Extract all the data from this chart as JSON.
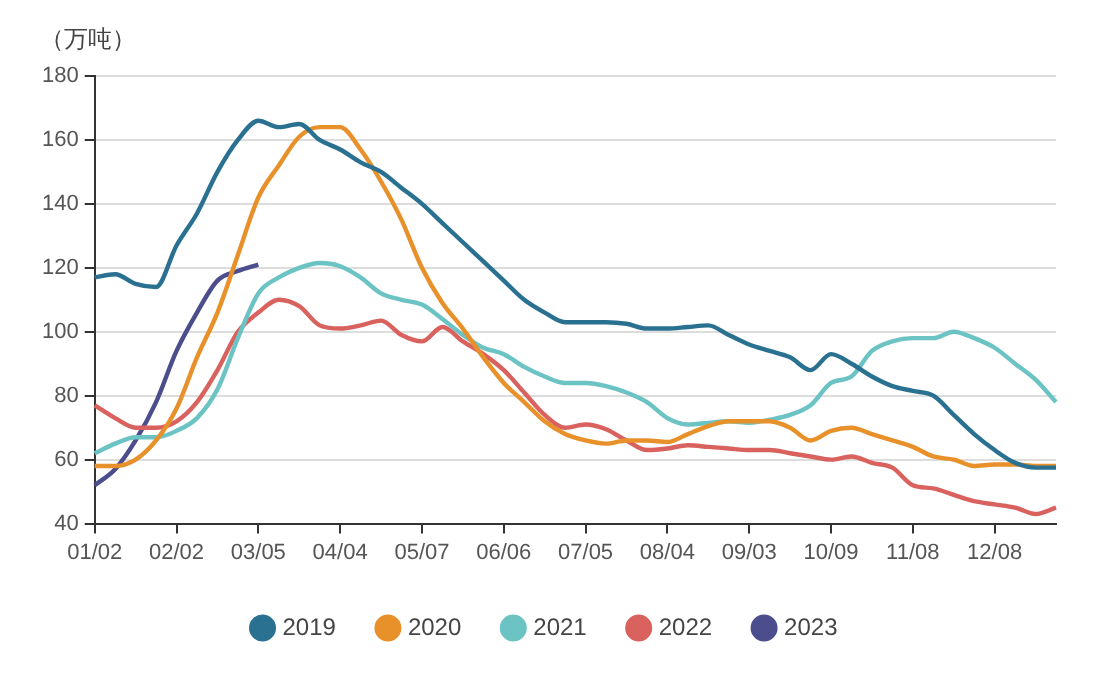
{
  "chart_data": {
    "type": "line",
    "ylabel": "（万吨）",
    "categories": [
      "01/02",
      null,
      null,
      null,
      "02/02",
      null,
      null,
      null,
      "03/05",
      null,
      null,
      null,
      "04/04",
      null,
      null,
      null,
      "05/07",
      null,
      null,
      null,
      "06/06",
      null,
      null,
      null,
      "07/05",
      null,
      null,
      null,
      "08/04",
      null,
      null,
      null,
      "09/03",
      null,
      null,
      null,
      "10/09",
      null,
      null,
      null,
      "11/08",
      null,
      null,
      null,
      "12/08",
      null,
      null,
      null
    ],
    "series": [
      {
        "name": "2019",
        "color": "#2a7191",
        "values": [
          117,
          118,
          115,
          114,
          127,
          137,
          150,
          160,
          166,
          164,
          165,
          160,
          157,
          153,
          150,
          145,
          140,
          134,
          128,
          122,
          116,
          110,
          106,
          103,
          103,
          103,
          102.5,
          101,
          101,
          101.5,
          102,
          99,
          96,
          94,
          92,
          88,
          93,
          90,
          86,
          83,
          81.5,
          80,
          74,
          68,
          63,
          59,
          57.5,
          57.5
        ]
      },
      {
        "name": "2020",
        "color": "#e8912a",
        "values": [
          58,
          58,
          60,
          66,
          76,
          92,
          106,
          124,
          142,
          152,
          161,
          164,
          164,
          157,
          147,
          135,
          120,
          109,
          101,
          92,
          84,
          78,
          72,
          68,
          66,
          65,
          66,
          66,
          65.5,
          68,
          70.5,
          72,
          72,
          72,
          70,
          66,
          69,
          70,
          68,
          66,
          64,
          61,
          60,
          58,
          58.5,
          58.5,
          58,
          58
        ]
      },
      {
        "name": "2021",
        "color": "#6cc3c4",
        "values": [
          62,
          65,
          67,
          67,
          69,
          73,
          82,
          98,
          112,
          117,
          120,
          121.5,
          120.5,
          117,
          112,
          110,
          108.5,
          104,
          99,
          95,
          93,
          89,
          86,
          84,
          84,
          83,
          81,
          78,
          73,
          71,
          71.5,
          72,
          71.5,
          72.5,
          74,
          77,
          84,
          86,
          94,
          97,
          98,
          98,
          100,
          98,
          95,
          90,
          85,
          78
        ]
      },
      {
        "name": "2022",
        "color": "#d9625f",
        "values": [
          77,
          73,
          70,
          70,
          72,
          78,
          88,
          100,
          106,
          110,
          108,
          102,
          101,
          102,
          103.5,
          99,
          97,
          101.5,
          97,
          93,
          88,
          81,
          74,
          70,
          71,
          69.5,
          66,
          63,
          63.5,
          64.5,
          64,
          63.5,
          63,
          63,
          62,
          61,
          60,
          61,
          59,
          57.5,
          52,
          51,
          49,
          47,
          46,
          45,
          43,
          45
        ]
      },
      {
        "name": "2023",
        "color": "#4b4d8d",
        "values": [
          52,
          57,
          66,
          78,
          94,
          106,
          116,
          119,
          121,
          null,
          null,
          null,
          null,
          null,
          null,
          null,
          null,
          null,
          null,
          null,
          null,
          null,
          null,
          null,
          null,
          null,
          null,
          null,
          null,
          null,
          null,
          null,
          null,
          null,
          null,
          null,
          null,
          null,
          null,
          null,
          null,
          null,
          null,
          null,
          null,
          null,
          null,
          null
        ]
      }
    ],
    "ylim": [
      40,
      180
    ],
    "yticks": [
      40,
      60,
      80,
      100,
      120,
      140,
      160,
      180
    ],
    "grid": "y",
    "legend": "bottom",
    "marker": "none",
    "line_style": "solid"
  }
}
